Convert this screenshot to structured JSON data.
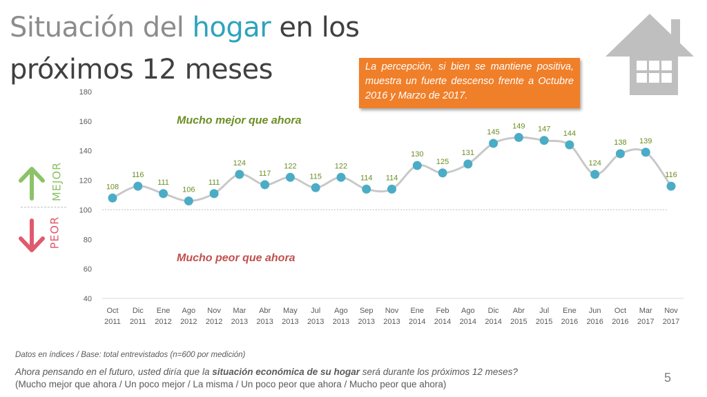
{
  "title": {
    "line1_part1": "Situación del ",
    "line1_accent": "hogar",
    "line1_part2": " en los",
    "line2": "próximos 12 meses"
  },
  "callout_text": "La percepción, si bien se mantiene positiva, muestra un fuerte descenso frente a Octubre 2016 y Marzo de 2017.",
  "side_labels": {
    "up": "MEJOR",
    "down": "PEOR"
  },
  "footnote": "Datos en índices / Base: total entrevistados (n=600 por medición)",
  "question": {
    "pre": "Ahora pensando en el futuro, usted diría que la ",
    "bold": "situación económica de su hogar",
    "post": " será durante los próximos 12 meses?"
  },
  "options": "(Mucho mejor que ahora / Un poco mejor / La misma / Un poco peor que ahora / Mucho peor que ahora)",
  "page_number": "5",
  "colors": {
    "accent": "#2ea3bd",
    "callout_bg": "#f07f2a",
    "mejor": "#8cc269",
    "peor": "#e05a6e",
    "annotation_better": "#6b8e23",
    "annotation_worse": "#c0504d",
    "line": "#c8c8c8",
    "marker": "#4bacc6",
    "data_label": "#6b8e23",
    "house": "#bfbfbf"
  },
  "icons": {
    "house": "house-icon",
    "up": "arrow-up-icon",
    "down": "arrow-down-icon"
  },
  "chart_data": {
    "type": "line",
    "categories": [
      [
        "Oct",
        "2011"
      ],
      [
        "Dic",
        "2011"
      ],
      [
        "Ene",
        "2012"
      ],
      [
        "Ago",
        "2012"
      ],
      [
        "Nov",
        "2012"
      ],
      [
        "Mar",
        "2013"
      ],
      [
        "Abr",
        "2013"
      ],
      [
        "May",
        "2013"
      ],
      [
        "Jul",
        "2013"
      ],
      [
        "Ago",
        "2013"
      ],
      [
        "Sep",
        "2013"
      ],
      [
        "Nov",
        "2013"
      ],
      [
        "Ene",
        "2014"
      ],
      [
        "Feb",
        "2014"
      ],
      [
        "Ago",
        "2014"
      ],
      [
        "Dic",
        "2014"
      ],
      [
        "Abr",
        "2015"
      ],
      [
        "Jul",
        "2015"
      ],
      [
        "Ene",
        "2016"
      ],
      [
        "Jun",
        "2016"
      ],
      [
        "Oct",
        "2016"
      ],
      [
        "Mar",
        "2017"
      ],
      [
        "Nov",
        "2017"
      ]
    ],
    "values": [
      108,
      116,
      111,
      106,
      111,
      124,
      117,
      122,
      115,
      122,
      114,
      114,
      130,
      125,
      131,
      145,
      149,
      147,
      144,
      124,
      138,
      139,
      116
    ],
    "ylim": [
      40,
      180
    ],
    "yticks": [
      40,
      60,
      80,
      100,
      120,
      140,
      160,
      180
    ],
    "reference_line": 100,
    "grid": false,
    "legend": "none",
    "annotations": [
      {
        "text": "Mucho mejor que ahora",
        "y": 161,
        "tone": "better"
      },
      {
        "text": "Mucho peor que ahora",
        "y": 68,
        "tone": "worse"
      }
    ]
  }
}
